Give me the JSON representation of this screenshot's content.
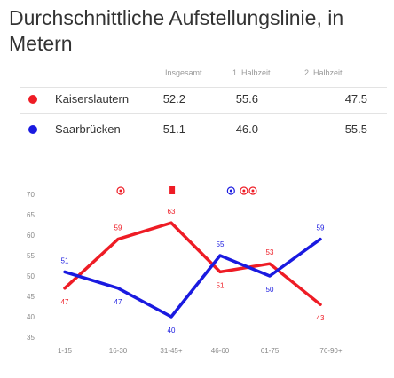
{
  "title": "Durchschnittliche Aufstellungslinie, in Metern",
  "stats": {
    "headers": [
      "Insgesamt",
      "1. Halbzeit",
      "2. Halbzeit"
    ],
    "rows": [
      {
        "team": "Kaiserslautern",
        "color": "#ee1c25",
        "values": [
          "52.2",
          "55.6",
          "47.5"
        ]
      },
      {
        "team": "Saarbrücken",
        "color": "#1a1ae0",
        "values": [
          "51.1",
          "46.0",
          "55.5"
        ]
      }
    ]
  },
  "chart_data": {
    "type": "line",
    "categories": [
      "1-15",
      "16-30",
      "31-45+",
      "46-60",
      "61-75",
      "76-90+"
    ],
    "ylim": [
      35,
      70
    ],
    "yticks": [
      35,
      40,
      45,
      50,
      55,
      60,
      65,
      70
    ],
    "series": [
      {
        "name": "Kaiserslautern",
        "color": "#ee1c25",
        "values": [
          47,
          59,
          63,
          51,
          53,
          43
        ]
      },
      {
        "name": "Saarbrücken",
        "color": "#1a1ae0",
        "values": [
          51,
          47,
          40,
          55,
          50,
          59
        ]
      }
    ],
    "event_markers": [
      {
        "category_position": 1.05,
        "color": "#ee1c25",
        "icon": "soccer-ball-icon"
      },
      {
        "category_position": 2.02,
        "color": "#ee1c25",
        "icon": "red-card-icon"
      },
      {
        "category_position": 3.22,
        "color": "#1a1ae0",
        "icon": "soccer-ball-icon"
      },
      {
        "category_position": 3.48,
        "color": "#ee1c25",
        "icon": "soccer-ball-icon"
      },
      {
        "category_position": 3.66,
        "color": "#ee1c25",
        "icon": "soccer-ball-icon"
      }
    ]
  }
}
